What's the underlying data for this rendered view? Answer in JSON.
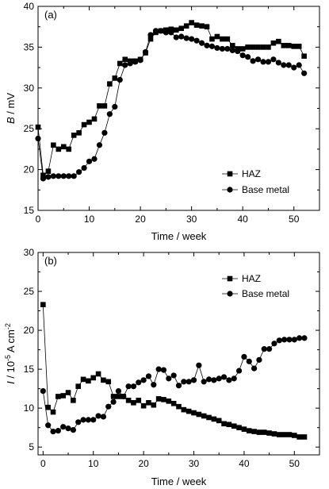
{
  "chart_data": [
    {
      "type": "line",
      "panel_label": "(a)",
      "xlabel": "Time / week",
      "ylabel_italic": "B",
      "ylabel_rest": " / mV",
      "xlim": [
        0,
        55
      ],
      "ylim": [
        15,
        40
      ],
      "xticks": [
        0,
        10,
        20,
        30,
        40,
        50
      ],
      "yticks": [
        15,
        20,
        25,
        30,
        35,
        40
      ],
      "legend_position": "lower-right",
      "series": [
        {
          "name": "HAZ",
          "marker": "square",
          "x": [
            0,
            1,
            2,
            3,
            4,
            5,
            6,
            7,
            8,
            9,
            10,
            11,
            12,
            13,
            14,
            15,
            16,
            17,
            18,
            19,
            20,
            21,
            22,
            23,
            24,
            25,
            26,
            27,
            28,
            29,
            30,
            31,
            32,
            33,
            34,
            35,
            36,
            37,
            38,
            39,
            40,
            41,
            42,
            43,
            44,
            45,
            46,
            47,
            48,
            49,
            50,
            51,
            52
          ],
          "y": [
            25.2,
            19.3,
            19.8,
            23.0,
            22.5,
            22.8,
            22.5,
            24.2,
            24.5,
            25.5,
            25.8,
            26.2,
            27.8,
            27.8,
            30.5,
            31.2,
            33.0,
            33.5,
            33.3,
            33.3,
            33.5,
            34.3,
            36.0,
            36.8,
            37.0,
            37.1,
            37.2,
            37.1,
            37.3,
            37.6,
            38.0,
            37.7,
            37.6,
            37.5,
            36.0,
            36.3,
            36.0,
            36.0,
            35.2,
            34.8,
            34.8,
            35.0,
            35.0,
            35.0,
            35.0,
            35.0,
            35.5,
            35.7,
            35.2,
            35.2,
            35.1,
            35.1,
            33.9
          ]
        },
        {
          "name": "Base metal",
          "marker": "circle",
          "x": [
            0,
            1,
            2,
            3,
            4,
            5,
            6,
            7,
            8,
            9,
            10,
            11,
            12,
            13,
            14,
            15,
            16,
            17,
            18,
            19,
            20,
            21,
            22,
            23,
            24,
            25,
            26,
            27,
            28,
            29,
            30,
            31,
            32,
            33,
            34,
            35,
            36,
            37,
            38,
            39,
            40,
            41,
            42,
            43,
            44,
            45,
            46,
            47,
            48,
            49,
            50,
            51,
            52
          ],
          "y": [
            23.8,
            18.9,
            19.1,
            19.2,
            19.2,
            19.2,
            19.2,
            19.2,
            19.7,
            20.2,
            21.0,
            21.3,
            23.0,
            24.5,
            26.8,
            27.7,
            31.0,
            32.8,
            33.0,
            33.2,
            33.4,
            34.4,
            36.5,
            37.0,
            37.0,
            36.8,
            36.8,
            36.2,
            36.3,
            36.1,
            36.0,
            35.8,
            35.5,
            35.2,
            35.1,
            34.9,
            34.8,
            34.8,
            34.6,
            34.5,
            34.0,
            33.8,
            33.3,
            33.5,
            33.2,
            33.2,
            33.5,
            33.1,
            32.8,
            32.8,
            32.5,
            32.8,
            31.8
          ]
        }
      ]
    },
    {
      "type": "line",
      "panel_label": "(b)",
      "xlabel": "Time / week",
      "ylabel_italic": "I",
      "ylabel_rest": " / 10",
      "ylabel_exp1": "-5",
      "ylabel_unit": " A cm",
      "ylabel_exp2": "-2",
      "xlim": [
        -1,
        55
      ],
      "ylim": [
        4,
        30
      ],
      "xticks": [
        0,
        10,
        20,
        30,
        40,
        50
      ],
      "yticks": [
        5,
        10,
        15,
        20,
        25,
        30
      ],
      "legend_position": "top-right",
      "series": [
        {
          "name": "HAZ",
          "marker": "square",
          "x": [
            0,
            1,
            2,
            3,
            4,
            5,
            6,
            7,
            8,
            9,
            10,
            11,
            12,
            13,
            14,
            15,
            16,
            17,
            18,
            19,
            20,
            21,
            22,
            23,
            24,
            25,
            26,
            27,
            28,
            29,
            30,
            31,
            32,
            33,
            34,
            35,
            36,
            37,
            38,
            39,
            40,
            41,
            42,
            43,
            44,
            45,
            46,
            47,
            48,
            49,
            50,
            51,
            52
          ],
          "y": [
            23.3,
            10.1,
            9.5,
            11.5,
            11.6,
            12.0,
            11.0,
            12.8,
            13.7,
            13.5,
            13.9,
            14.4,
            13.6,
            13.4,
            11.5,
            11.5,
            11.5,
            11.0,
            10.7,
            11.0,
            10.3,
            10.7,
            10.4,
            11.2,
            11.1,
            10.9,
            10.6,
            10.2,
            9.8,
            9.6,
            9.4,
            9.2,
            9.0,
            8.8,
            8.6,
            8.4,
            8.0,
            7.9,
            7.7,
            7.5,
            7.3,
            7.1,
            7.0,
            6.9,
            6.9,
            6.8,
            6.7,
            6.6,
            6.6,
            6.6,
            6.5,
            6.3,
            6.3
          ]
        },
        {
          "name": "Base metal",
          "marker": "circle",
          "x": [
            0,
            1,
            2,
            3,
            4,
            5,
            6,
            7,
            8,
            9,
            10,
            11,
            12,
            13,
            14,
            15,
            16,
            17,
            18,
            19,
            20,
            21,
            22,
            23,
            24,
            25,
            26,
            27,
            28,
            29,
            30,
            31,
            32,
            33,
            34,
            35,
            36,
            37,
            38,
            39,
            40,
            41,
            42,
            43,
            44,
            45,
            46,
            47,
            48,
            49,
            50,
            51,
            52
          ],
          "y": [
            12.2,
            7.8,
            7.0,
            7.1,
            7.6,
            7.4,
            7.2,
            8.2,
            8.5,
            8.5,
            8.5,
            9.0,
            8.9,
            10.2,
            10.8,
            12.2,
            11.5,
            12.8,
            12.8,
            13.3,
            13.6,
            14.1,
            13.0,
            15.0,
            14.9,
            13.8,
            14.2,
            12.9,
            13.4,
            13.4,
            13.6,
            15.5,
            13.4,
            13.7,
            13.6,
            13.8,
            14.0,
            13.6,
            13.8,
            14.8,
            16.6,
            16.0,
            15.1,
            16.2,
            17.6,
            17.6,
            18.3,
            18.7,
            18.8,
            18.8,
            18.8,
            19.0,
            19.0
          ]
        }
      ]
    }
  ]
}
